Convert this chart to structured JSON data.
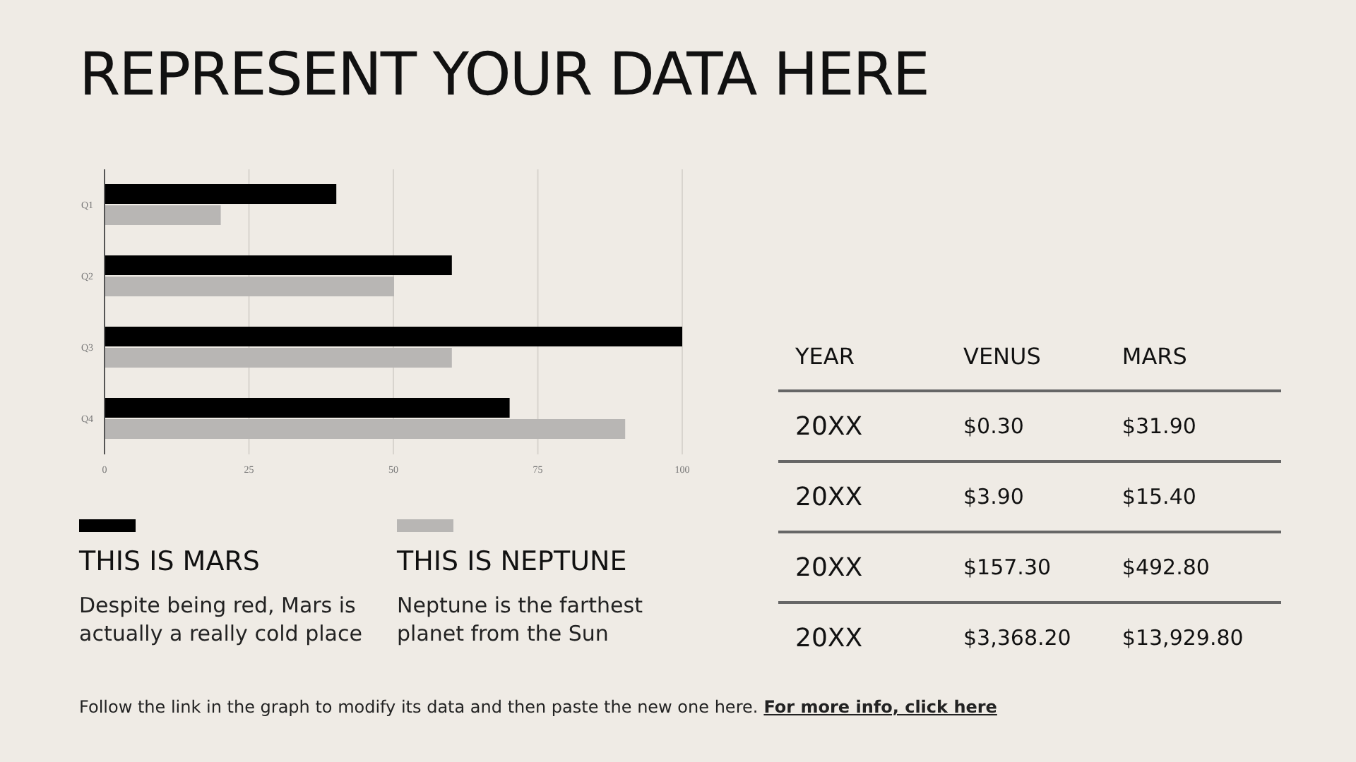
{
  "chart_data": [
    {
      "type": "bar",
      "orientation": "horizontal",
      "title": "REPRESENT YOUR DATA HERE",
      "categories": [
        "Q1",
        "Q2",
        "Q3",
        "Q4"
      ],
      "series": [
        {
          "name": "THIS IS MARS",
          "color": "#000000",
          "values": [
            40,
            60,
            100,
            70
          ]
        },
        {
          "name": "THIS IS NEPTUNE",
          "color": "#b8b6b4",
          "values": [
            20,
            50,
            60,
            90
          ]
        }
      ],
      "xlim": [
        0,
        100
      ],
      "xticks": [
        0,
        25,
        50,
        75,
        100
      ],
      "grid": "x",
      "legend": "bottom",
      "annotations": [
        "Despite being red, Mars is actually a really cold place",
        "Neptune is the farthest planet from the Sun",
        "Follow the link in the graph to modify its data and then paste the new one here.",
        "For more info, click here"
      ]
    },
    {
      "type": "other",
      "xlabel": "YEAR",
      "categories": [
        "20XX",
        "20XX",
        "20XX",
        "20XX"
      ],
      "series": [
        {
          "name": "VENUS",
          "values": [
            0.3,
            3.9,
            157.3,
            3368.2
          ],
          "value_labels": [
            "$0.30",
            "$3.90",
            "$157.30",
            "$3,368.20"
          ]
        },
        {
          "name": "MARS",
          "values": [
            31.9,
            15.4,
            492.8,
            13929.8
          ],
          "value_labels": [
            "$31.90",
            "$15.40",
            "$492.80",
            "$13,929.80"
          ]
        }
      ]
    }
  ]
}
